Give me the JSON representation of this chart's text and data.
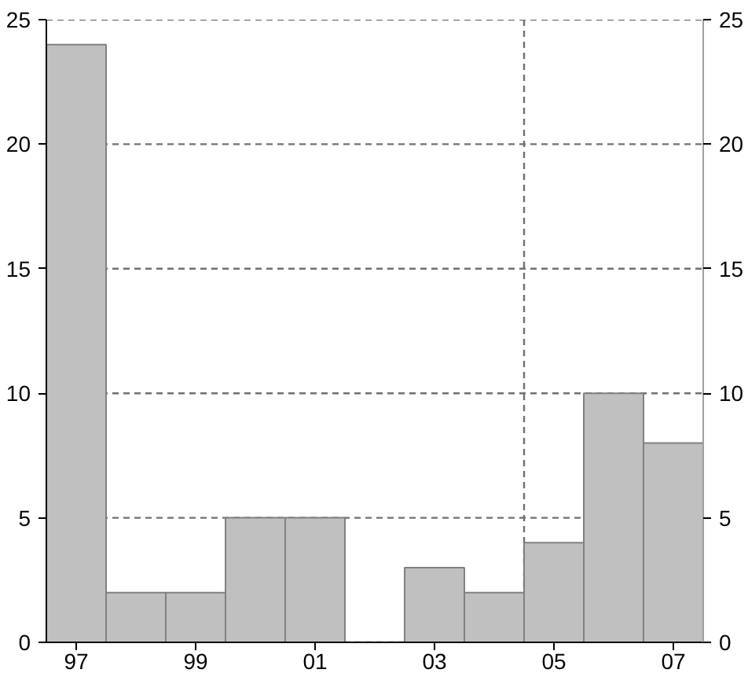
{
  "chart_data": {
    "type": "bar",
    "x": [
      1997,
      1998,
      1999,
      2000,
      2001,
      2002,
      2003,
      2004,
      2005,
      2006,
      2007
    ],
    "values": [
      24,
      2,
      2,
      5,
      5,
      0,
      3,
      2,
      4,
      10,
      8
    ],
    "color": "#c0c0c0",
    "xlim": [
      1996.5,
      2007.5
    ],
    "xticks": [
      {
        "value": 1997,
        "label": "97"
      },
      {
        "value": 1999,
        "label": "99"
      },
      {
        "value": 2001,
        "label": "01"
      },
      {
        "value": 2003,
        "label": "03"
      },
      {
        "value": 2005,
        "label": "05"
      },
      {
        "value": 2007,
        "label": "07"
      }
    ],
    "ylim": [
      0,
      25
    ],
    "yticks": [
      0,
      5,
      10,
      15,
      20,
      25
    ],
    "y2lim": [
      0,
      25
    ],
    "y2ticks": [
      0,
      5,
      10,
      15,
      20,
      25
    ],
    "grid": "y",
    "ref_lines": [
      {
        "axis": "x",
        "value": 2004.5,
        "color": "#707070",
        "line_style": "dashed"
      }
    ]
  }
}
